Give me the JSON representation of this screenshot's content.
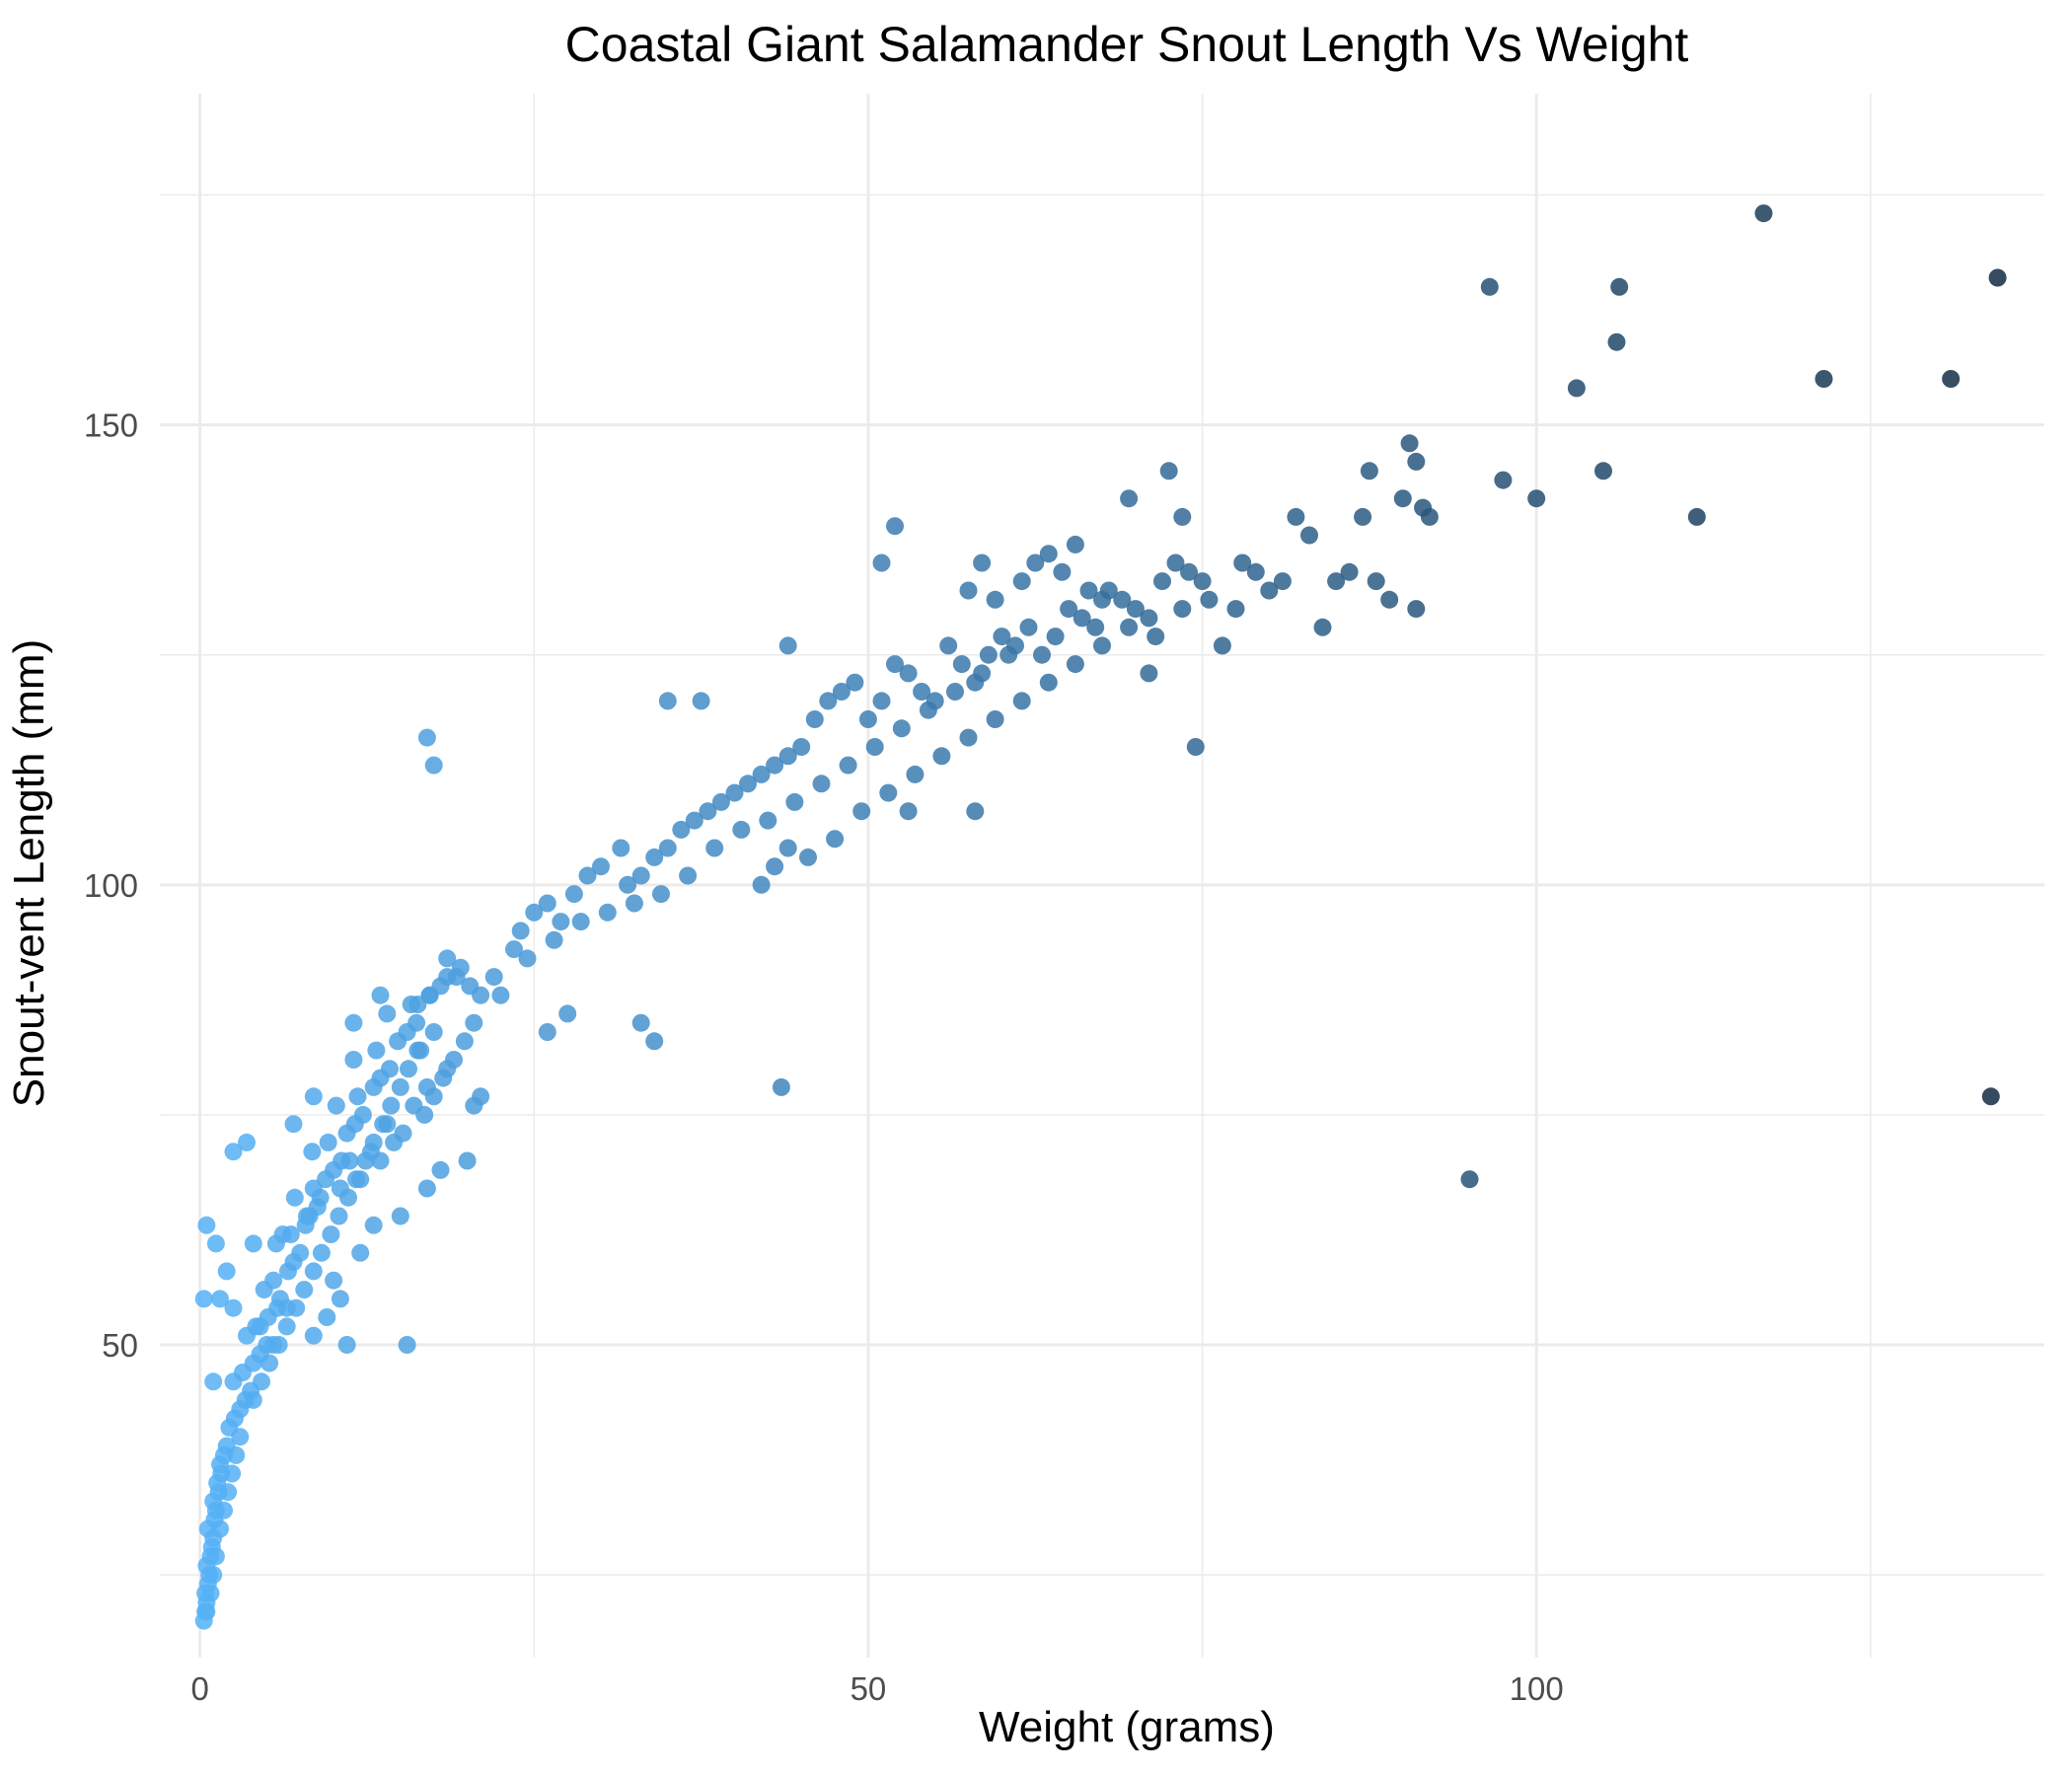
{
  "chart_data": {
    "type": "scatter",
    "title": "Coastal Giant Salamander Snout Length Vs Weight",
    "xlabel": "Weight (grams)",
    "ylabel": "Snout-vent Length (mm)",
    "xlim": [
      -3,
      138
    ],
    "ylim": [
      16,
      186
    ],
    "xticks": [
      0,
      50,
      100
    ],
    "yticks": [
      50,
      100,
      150
    ],
    "grid": true,
    "legend": "none",
    "color_scale": {
      "low": "#56b1f7",
      "high": "#132b43",
      "variable": "weight"
    },
    "point_alpha": 0.85,
    "points": [
      [
        0.3,
        20
      ],
      [
        0.4,
        21
      ],
      [
        0.5,
        22
      ],
      [
        0.4,
        23
      ],
      [
        0.6,
        24
      ],
      [
        0.7,
        25
      ],
      [
        0.5,
        26
      ],
      [
        0.8,
        27
      ],
      [
        0.9,
        28
      ],
      [
        1.0,
        29
      ],
      [
        0.6,
        30
      ],
      [
        1.1,
        31
      ],
      [
        1.2,
        32
      ],
      [
        1.0,
        33
      ],
      [
        1.4,
        34
      ],
      [
        1.3,
        35
      ],
      [
        1.6,
        36
      ],
      [
        1.5,
        37
      ],
      [
        1.8,
        38
      ],
      [
        2.0,
        39
      ],
      [
        0.5,
        21
      ],
      [
        0.8,
        23
      ],
      [
        1.0,
        25
      ],
      [
        1.2,
        27
      ],
      [
        1.5,
        30
      ],
      [
        1.8,
        32
      ],
      [
        2.1,
        34
      ],
      [
        2.4,
        36
      ],
      [
        2.7,
        38
      ],
      [
        3.0,
        40
      ],
      [
        2.2,
        41
      ],
      [
        2.6,
        42
      ],
      [
        3.0,
        43
      ],
      [
        3.4,
        44
      ],
      [
        3.8,
        45
      ],
      [
        2.5,
        46
      ],
      [
        3.2,
        47
      ],
      [
        4.0,
        48
      ],
      [
        4.5,
        49
      ],
      [
        5.0,
        50
      ],
      [
        3.5,
        51
      ],
      [
        4.2,
        52
      ],
      [
        5.1,
        53
      ],
      [
        5.8,
        54
      ],
      [
        6.0,
        55
      ],
      [
        4.8,
        56
      ],
      [
        5.5,
        57
      ],
      [
        6.6,
        58
      ],
      [
        7.0,
        59
      ],
      [
        7.5,
        60
      ],
      [
        5.7,
        61
      ],
      [
        6.8,
        62
      ],
      [
        7.9,
        63
      ],
      [
        8.2,
        64
      ],
      [
        8.8,
        65
      ],
      [
        7.1,
        66
      ],
      [
        8.5,
        67
      ],
      [
        9.4,
        68
      ],
      [
        10.0,
        69
      ],
      [
        10.6,
        70
      ],
      [
        8.4,
        71
      ],
      [
        9.6,
        72
      ],
      [
        11.0,
        73
      ],
      [
        11.6,
        74
      ],
      [
        12.2,
        75
      ],
      [
        10.2,
        76
      ],
      [
        11.8,
        77
      ],
      [
        13.0,
        78
      ],
      [
        13.5,
        79
      ],
      [
        14.2,
        80
      ],
      [
        11.5,
        81
      ],
      [
        13.2,
        82
      ],
      [
        14.8,
        83
      ],
      [
        15.5,
        84
      ],
      [
        16.2,
        85
      ],
      [
        14.0,
        86
      ],
      [
        15.8,
        87
      ],
      [
        17.2,
        88
      ],
      [
        18.0,
        89
      ],
      [
        19.2,
        90
      ],
      [
        4.0,
        44
      ],
      [
        4.6,
        46
      ],
      [
        5.2,
        48
      ],
      [
        5.9,
        50
      ],
      [
        6.5,
        52
      ],
      [
        7.2,
        54
      ],
      [
        7.8,
        56
      ],
      [
        8.5,
        58
      ],
      [
        9.1,
        60
      ],
      [
        9.8,
        62
      ],
      [
        10.4,
        64
      ],
      [
        11.1,
        66
      ],
      [
        11.7,
        68
      ],
      [
        12.4,
        70
      ],
      [
        13.0,
        72
      ],
      [
        13.7,
        74
      ],
      [
        14.3,
        76
      ],
      [
        15.0,
        78
      ],
      [
        15.6,
        80
      ],
      [
        16.3,
        82
      ],
      [
        12.0,
        68
      ],
      [
        13.5,
        70
      ],
      [
        14.5,
        72
      ],
      [
        15.2,
        73
      ],
      [
        16.8,
        75
      ],
      [
        17.5,
        77
      ],
      [
        18.2,
        79
      ],
      [
        19.0,
        81
      ],
      [
        19.8,
        83
      ],
      [
        20.5,
        85
      ],
      [
        6.2,
        62
      ],
      [
        8.0,
        64
      ],
      [
        9.0,
        66
      ],
      [
        10.5,
        67
      ],
      [
        11.2,
        70
      ],
      [
        12.8,
        71
      ],
      [
        14.0,
        74
      ],
      [
        16.0,
        76
      ],
      [
        17.0,
        78
      ],
      [
        18.5,
        80
      ],
      [
        0.3,
        55
      ],
      [
        1.5,
        55
      ],
      [
        0.5,
        63
      ],
      [
        1.2,
        61
      ],
      [
        2.0,
        58
      ],
      [
        2.5,
        71
      ],
      [
        3.5,
        72
      ],
      [
        4.0,
        61
      ],
      [
        1.0,
        46
      ],
      [
        2.5,
        54
      ],
      [
        5.5,
        50
      ],
      [
        6.5,
        54
      ],
      [
        8.5,
        51
      ],
      [
        9.5,
        53
      ],
      [
        10.0,
        57
      ],
      [
        10.5,
        55
      ],
      [
        12.0,
        60
      ],
      [
        13.0,
        63
      ],
      [
        15.0,
        64
      ],
      [
        17.0,
        67
      ],
      [
        18.0,
        69
      ],
      [
        20.0,
        70
      ],
      [
        20.5,
        76
      ],
      [
        7.0,
        74
      ],
      [
        8.5,
        77
      ],
      [
        11.5,
        85
      ],
      [
        13.5,
        88
      ],
      [
        11.0,
        50
      ],
      [
        15.5,
        50
      ],
      [
        4.5,
        52
      ],
      [
        16.3,
        87
      ],
      [
        17.2,
        88
      ],
      [
        18.5,
        90
      ],
      [
        19.5,
        91
      ],
      [
        20.2,
        89
      ],
      [
        21.0,
        88
      ],
      [
        22.0,
        90
      ],
      [
        23.5,
        93
      ],
      [
        24.0,
        95
      ],
      [
        25.0,
        97
      ],
      [
        26.0,
        98
      ],
      [
        27.0,
        96
      ],
      [
        28.0,
        99
      ],
      [
        29.0,
        101
      ],
      [
        30.0,
        102
      ],
      [
        31.5,
        104
      ],
      [
        32.0,
        100
      ],
      [
        33.0,
        101
      ],
      [
        34.0,
        103
      ],
      [
        35.0,
        104
      ],
      [
        36.0,
        106
      ],
      [
        37.0,
        107
      ],
      [
        38.0,
        108
      ],
      [
        39.0,
        109
      ],
      [
        40.0,
        110
      ],
      [
        41.0,
        111
      ],
      [
        42.0,
        112
      ],
      [
        43.0,
        113
      ],
      [
        44.0,
        114
      ],
      [
        45.0,
        115
      ],
      [
        22.5,
        88
      ],
      [
        24.5,
        92
      ],
      [
        26.5,
        94
      ],
      [
        28.5,
        96
      ],
      [
        30.5,
        97
      ],
      [
        32.5,
        98
      ],
      [
        34.5,
        99
      ],
      [
        36.5,
        101
      ],
      [
        38.5,
        104
      ],
      [
        40.5,
        106
      ],
      [
        42.5,
        107
      ],
      [
        44.5,
        109
      ],
      [
        46.5,
        111
      ],
      [
        48.5,
        113
      ],
      [
        50.5,
        115
      ],
      [
        52.5,
        117
      ],
      [
        54.5,
        119
      ],
      [
        56.5,
        121
      ],
      [
        58.5,
        123
      ],
      [
        60.5,
        125
      ],
      [
        46.0,
        118
      ],
      [
        47.0,
        120
      ],
      [
        48.0,
        121
      ],
      [
        49.0,
        122
      ],
      [
        50.0,
        118
      ],
      [
        51.0,
        120
      ],
      [
        52.0,
        124
      ],
      [
        53.0,
        123
      ],
      [
        54.0,
        121
      ],
      [
        55.0,
        120
      ],
      [
        56.0,
        126
      ],
      [
        57.0,
        124
      ],
      [
        58.0,
        122
      ],
      [
        59.0,
        125
      ],
      [
        60.0,
        127
      ],
      [
        61.0,
        126
      ],
      [
        62.0,
        128
      ],
      [
        63.0,
        125
      ],
      [
        64.0,
        127
      ],
      [
        65.0,
        130
      ],
      [
        66.0,
        129
      ],
      [
        67.0,
        128
      ],
      [
        68.0,
        132
      ],
      [
        69.0,
        131
      ],
      [
        70.0,
        130
      ],
      [
        71.0,
        129
      ],
      [
        72.0,
        133
      ],
      [
        73.0,
        135
      ],
      [
        74.0,
        134
      ],
      [
        75.0,
        133
      ],
      [
        57.5,
        132
      ],
      [
        58.5,
        135
      ],
      [
        59.5,
        131
      ],
      [
        61.5,
        133
      ],
      [
        62.5,
        135
      ],
      [
        63.5,
        136
      ],
      [
        64.5,
        134
      ],
      [
        65.5,
        137
      ],
      [
        66.5,
        132
      ],
      [
        67.5,
        131
      ],
      [
        42.0,
        100
      ],
      [
        43.0,
        102
      ],
      [
        44.0,
        104
      ],
      [
        45.5,
        103
      ],
      [
        47.5,
        105
      ],
      [
        49.5,
        108
      ],
      [
        51.5,
        110
      ],
      [
        53.5,
        112
      ],
      [
        55.5,
        114
      ],
      [
        57.5,
        116
      ],
      [
        59.5,
        118
      ],
      [
        61.5,
        120
      ],
      [
        63.5,
        122
      ],
      [
        65.5,
        124
      ],
      [
        67.5,
        126
      ],
      [
        69.5,
        128
      ],
      [
        71.5,
        127
      ],
      [
        73.5,
        130
      ],
      [
        75.5,
        131
      ],
      [
        77.5,
        130
      ],
      [
        78.0,
        135
      ],
      [
        79.0,
        134
      ],
      [
        80.0,
        132
      ],
      [
        81.0,
        133
      ],
      [
        82.0,
        140
      ],
      [
        83.0,
        138
      ],
      [
        84.0,
        128
      ],
      [
        85.0,
        133
      ],
      [
        86.0,
        134
      ],
      [
        87.0,
        140
      ],
      [
        88.0,
        133
      ],
      [
        89.0,
        131
      ],
      [
        90.0,
        142
      ],
      [
        91.0,
        130
      ],
      [
        92.0,
        140
      ],
      [
        87.5,
        145
      ],
      [
        90.5,
        148
      ],
      [
        91.0,
        146
      ],
      [
        91.5,
        141
      ],
      [
        76.5,
        126
      ],
      [
        69.5,
        142
      ],
      [
        72.5,
        145
      ],
      [
        73.5,
        140
      ],
      [
        71.0,
        123
      ],
      [
        74.5,
        115
      ],
      [
        58.0,
        108
      ],
      [
        53.0,
        108
      ],
      [
        51.0,
        135
      ],
      [
        52.0,
        139
      ],
      [
        44.0,
        126
      ],
      [
        35.0,
        120
      ],
      [
        37.5,
        120
      ],
      [
        33.0,
        85
      ],
      [
        34.0,
        83
      ],
      [
        27.5,
        86
      ],
      [
        26.0,
        84
      ],
      [
        18.5,
        92
      ],
      [
        17.5,
        84
      ],
      [
        21.0,
        77
      ],
      [
        16.5,
        82
      ],
      [
        43.5,
        78
      ],
      [
        17.0,
        116
      ],
      [
        17.5,
        113
      ],
      [
        95.0,
        68
      ],
      [
        96.5,
        165
      ],
      [
        97.5,
        144
      ],
      [
        100.0,
        142
      ],
      [
        103.0,
        154
      ],
      [
        105.0,
        145
      ],
      [
        106.0,
        159
      ],
      [
        106.2,
        165
      ],
      [
        112.0,
        140
      ],
      [
        117.0,
        173
      ],
      [
        121.5,
        155
      ],
      [
        131.0,
        155
      ],
      [
        134.0,
        77
      ],
      [
        134.5,
        166
      ]
    ]
  }
}
